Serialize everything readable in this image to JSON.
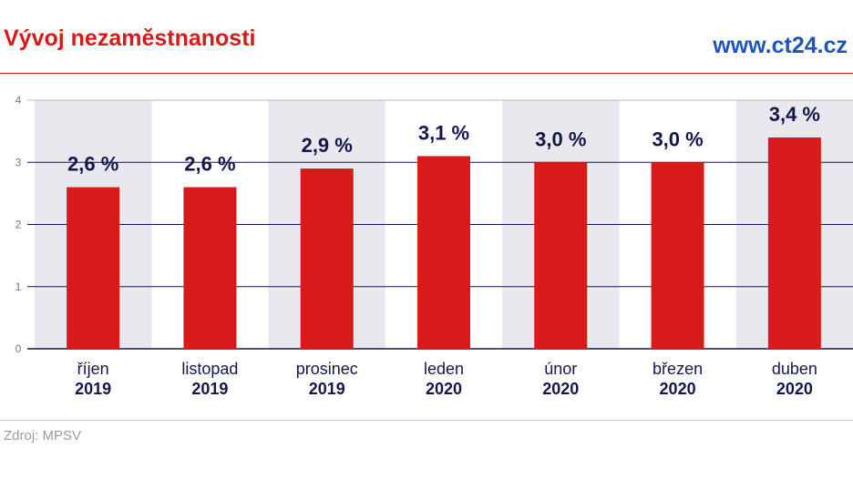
{
  "header": {
    "title": "Vývoj nezaměstnanosti",
    "site": "www.ct24.cz"
  },
  "footer": {
    "source": "Zdroj: MPSV"
  },
  "colors": {
    "bar": "#d71a1a",
    "band": "#e8e8ee",
    "grid": "#14174a",
    "label": "#14174a"
  },
  "chart_data": {
    "type": "bar",
    "title": "Vývoj nezaměstnanosti",
    "xlabel": "",
    "ylabel": "",
    "ylim": [
      0,
      4
    ],
    "yticks": [
      "0",
      "1",
      "2",
      "3",
      "4"
    ],
    "grid": true,
    "categories": [
      {
        "month": "říjen",
        "year": "2019"
      },
      {
        "month": "listopad",
        "year": "2019"
      },
      {
        "month": "prosinec",
        "year": "2019"
      },
      {
        "month": "leden",
        "year": "2020"
      },
      {
        "month": "únor",
        "year": "2020"
      },
      {
        "month": "březen",
        "year": "2020"
      },
      {
        "month": "duben",
        "year": "2020"
      }
    ],
    "values": [
      2.6,
      2.6,
      2.9,
      3.1,
      3.0,
      3.0,
      3.4
    ],
    "value_labels": [
      "2,6 %",
      "2,6 %",
      "2,9 %",
      "3,1 %",
      "3,0 %",
      "3,0 %",
      "3,4 %"
    ]
  }
}
